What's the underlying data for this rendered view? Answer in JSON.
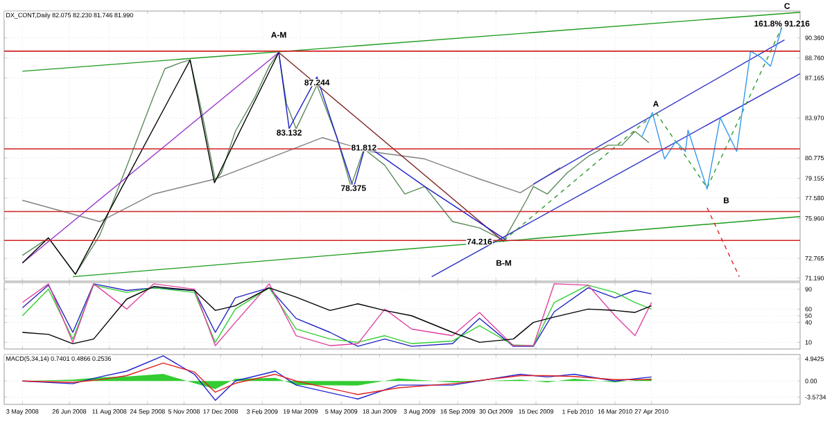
{
  "chart_data": [
    {
      "type": "line",
      "title": "DX_CONT,Daily 82.075 82.230 81.746 81.990",
      "grid": true,
      "tick_labels": "y",
      "x": [
        "2008-05-03",
        "2008-06-02",
        "2008-07-03",
        "2008-07-31",
        "2008-08-31",
        "2008-10-01",
        "2008-10-14",
        "2008-11-02",
        "2008-11-12",
        "2008-11-25",
        "2008-12-11",
        "2008-12-18",
        "2009-01-03",
        "2009-01-26",
        "2009-02-11",
        "2009-02-22",
        "2009-03-03",
        "2009-03-14",
        "2009-04-07",
        "2009-04-30",
        "2009-05-16",
        "2009-05-31",
        "2009-06-24",
        "2009-07-17",
        "2009-08-09",
        "2009-09-10",
        "2009-10-11",
        "2009-11-08",
        "2009-12-04",
        "2009-12-12",
        "2009-12-28",
        "2010-01-20",
        "2010-02-13",
        "2010-03-08",
        "2010-03-24",
        "2010-04-08",
        "2010-04-24"
      ],
      "series": [
        {
          "color": "#5a8a5a",
          "values": [
            73.0,
            74.4,
            71.5,
            74.6,
            80.1,
            85.7,
            87.9,
            88.4,
            88.6,
            84.6,
            79.0,
            79.6,
            82.9,
            85.7,
            88.1,
            89.2,
            85.1,
            83.1,
            86.6,
            82.4,
            78.5,
            81.5,
            80.2,
            77.9,
            78.5,
            75.7,
            75.2,
            74.2,
            77.4,
            78.5,
            77.9,
            79.6,
            80.9,
            81.8,
            81.8,
            82.9,
            82.0
          ]
        },
        {
          "color": "#808080",
          "x": [
            "2008-05-03",
            "2008-07-31",
            "2008-10-01",
            "2008-12-11",
            "2009-02-20",
            "2009-04-13",
            "2009-06-07",
            "2009-08-09",
            "2009-10-11",
            "2009-11-27",
            "2010-01-12"
          ],
          "values": [
            77.4,
            75.7,
            77.9,
            79.1,
            81.0,
            82.4,
            81.3,
            80.7,
            79.1,
            78.0,
            80.0
          ]
        },
        {
          "color": "#1a9a1a",
          "x": [
            "2008-05-03",
            "2010-10-15"
          ],
          "values": [
            87.7,
            92.4
          ]
        },
        {
          "color": "#1a9a1a",
          "x": [
            "2008-06-30",
            "2010-10-15"
          ],
          "values": [
            71.3,
            76.1
          ]
        },
        {
          "color": "#9932cc",
          "x": [
            "2008-05-03",
            "2009-02-22"
          ],
          "values": [
            72.4,
            89.2
          ]
        },
        {
          "color": "#000000",
          "x": [
            "2008-05-03",
            "2008-06-02",
            "2008-07-03",
            "2008-11-12",
            "2008-12-10",
            "2009-02-22"
          ],
          "values": [
            72.4,
            74.4,
            71.5,
            88.6,
            78.8,
            89.2
          ]
        },
        {
          "color": "#7b2020",
          "x": [
            "2009-02-22",
            "2009-11-08"
          ],
          "values": [
            89.2,
            74.1
          ]
        },
        {
          "color": "#1c1cc8",
          "x": [
            "2009-02-22",
            "2009-03-06",
            "2009-04-07",
            "2009-05-19",
            "2009-06-02",
            "2009-08-09",
            "2009-11-11"
          ],
          "values": [
            89.2,
            83.132,
            87.244,
            78.375,
            81.812,
            78.5,
            74.216
          ]
        },
        {
          "color": "#3030c8",
          "x": [
            "2009-08-17",
            "2010-10-15"
          ],
          "values": [
            71.3,
            87.5
          ]
        },
        {
          "color": "#3030c8",
          "x": [
            "2009-12-12",
            "2010-09-27"
          ],
          "values": [
            78.7,
            90.2
          ]
        },
        {
          "color": "#2a9a2a",
          "line_style": "dashed",
          "x": [
            "2009-11-08",
            "2010-05-02",
            "2010-06-30",
            "2010-09-24"
          ],
          "values": [
            74.2,
            84.4,
            78.4,
            91.216
          ]
        },
        {
          "color": "#3399ee",
          "x": [
            "2010-04-16",
            "2010-04-28",
            "2010-05-12",
            "2010-05-25",
            "2010-06-05",
            "2010-06-08",
            "2010-06-30",
            "2010-07-15",
            "2010-08-03",
            "2010-08-19",
            "2010-08-31",
            "2010-09-11",
            "2010-09-24"
          ],
          "values": [
            82.5,
            84.4,
            80.7,
            82.1,
            81.3,
            83.0,
            78.3,
            84.0,
            81.3,
            89.3,
            88.8,
            88.1,
            91.216
          ]
        },
        {
          "color": "#e02020",
          "line_style": "dashed",
          "x": [
            "2010-06-30",
            "2010-08-06"
          ],
          "values": [
            76.8,
            71.3
          ]
        }
      ],
      "xlim": [
        "2008-04-12",
        "2010-10-15"
      ],
      "xticks": [
        "2008-05-03",
        "2008-06-26",
        "2008-08-11",
        "2008-09-24",
        "2008-11-05",
        "2008-12-17",
        "2009-02-03",
        "2009-03-19",
        "2009-05-05",
        "2009-06-18",
        "2009-08-03",
        "2009-09-16",
        "2009-10-30",
        "2009-12-15",
        "2010-02-01",
        "2010-03-16",
        "2010-04-27"
      ],
      "ylim": [
        70.95,
        92.5
      ],
      "yticks": [
        {
          "value": 71.19,
          "label": "71.190"
        },
        72.765,
        {
          "value": 75.96,
          "label": "75.960"
        },
        {
          "value": 77.58,
          "label": "77.580"
        },
        79.155,
        80.775,
        {
          "value": 83.97,
          "label": "83.970"
        },
        87.165,
        {
          "value": 88.76,
          "label": "88.760"
        },
        {
          "value": 90.36,
          "label": "90.360"
        }
      ],
      "ref_lines": [
        {
          "axis": "y",
          "value": 89.3,
          "color": "#d02020"
        },
        {
          "axis": "y",
          "value": 81.5,
          "color": "#d02020"
        },
        {
          "axis": "y",
          "value": 76.5,
          "color": "#d02020"
        },
        {
          "axis": "y",
          "value": 74.2,
          "color": "#d02020"
        }
      ],
      "annotations": [
        {
          "text": "A-M",
          "x": "2009-02-22",
          "y": 90.6
        },
        {
          "text": "B-M",
          "x": "2009-11-08",
          "y": 72.4
        },
        {
          "text": "A",
          "x": "2010-05-02",
          "y": 85.1
        },
        {
          "text": "B",
          "x": "2010-07-22",
          "y": 77.4
        },
        {
          "text": "C",
          "x": "2010-09-30",
          "y": 92.9
        },
        {
          "text": "161.8% 91.216",
          "x": "2010-09-24",
          "y": 91.5
        },
        {
          "text": "87.244",
          "x": "2009-04-07",
          "y": 86.8
        },
        {
          "text": "83.132",
          "x": "2009-03-06",
          "y": 82.8
        },
        {
          "text": "81.812",
          "x": "2009-05-31",
          "y": 81.6
        },
        {
          "text": "78.375",
          "x": "2009-05-19",
          "y": 78.375
        },
        {
          "text": "74.216",
          "x": "2009-10-11",
          "y": 74.1
        }
      ]
    },
    {
      "type": "line",
      "grid": true,
      "tick_labels": "y",
      "x": [
        "2008-05-03",
        "2008-06-02",
        "2008-06-30",
        "2008-07-24",
        "2008-08-31",
        "2008-10-01",
        "2008-11-17",
        "2008-12-11",
        "2009-01-03",
        "2009-02-11",
        "2009-03-14",
        "2009-04-22",
        "2009-05-24",
        "2009-06-24",
        "2009-07-25",
        "2009-09-10",
        "2009-10-11",
        "2009-11-19",
        "2009-12-12",
        "2010-01-05",
        "2010-02-13",
        "2010-03-16",
        "2010-04-08",
        "2010-04-27"
      ],
      "series": [
        {
          "color": "#2020c0",
          "values": [
            62,
            96,
            25,
            98,
            88,
            92,
            88,
            25,
            77,
            92,
            46,
            25,
            4,
            15,
            4,
            8,
            46,
            4,
            4,
            56,
            92,
            77,
            88,
            83
          ]
        },
        {
          "color": "#30d030",
          "values": [
            50,
            90,
            15,
            96,
            85,
            92,
            85,
            10,
            60,
            92,
            30,
            15,
            10,
            20,
            8,
            12,
            35,
            6,
            5,
            70,
            96,
            85,
            70,
            60
          ]
        },
        {
          "color": "#e040a0",
          "values": [
            70,
            98,
            10,
            98,
            60,
            98,
            90,
            5,
            40,
            98,
            20,
            5,
            8,
            60,
            30,
            20,
            55,
            5,
            5,
            98,
            96,
            50,
            20,
            70
          ]
        },
        {
          "color": "#000000",
          "values": [
            25,
            22,
            8,
            15,
            75,
            94,
            88,
            58,
            65,
            92,
            78,
            58,
            68,
            58,
            50,
            25,
            10,
            15,
            40,
            48,
            60,
            58,
            55,
            65
          ]
        }
      ],
      "xlim": [
        "2008-04-12",
        "2010-10-15"
      ],
      "xticks": [
        "2008-05-03",
        "2008-06-26",
        "2008-08-11",
        "2008-09-24",
        "2008-11-05",
        "2008-12-17",
        "2009-02-03",
        "2009-03-19",
        "2009-05-05",
        "2009-06-18",
        "2009-08-03",
        "2009-09-16",
        "2009-10-30",
        "2009-12-15",
        "2010-02-01",
        "2010-03-16",
        "2010-04-27"
      ],
      "ylim": [
        0,
        100
      ],
      "yticks": [
        10,
        40,
        50,
        60,
        90
      ]
    },
    {
      "type": "line",
      "title": "MACD(5,34,14) 0.7401 0.4866 0.2536",
      "grid": true,
      "x": [
        "2008-05-03",
        "2008-06-30",
        "2008-07-31",
        "2008-08-31",
        "2008-10-12",
        "2008-11-17",
        "2008-12-11",
        "2009-01-03",
        "2009-02-18",
        "2009-03-14",
        "2009-05-24",
        "2009-07-10",
        "2009-09-10",
        "2009-11-27",
        "2009-12-28",
        "2010-01-28",
        "2010-03-16",
        "2010-04-27"
      ],
      "series": [
        {
          "type": "area",
          "color": "#33cc33",
          "values": [
            0,
            0.3,
            0.8,
            1.0,
            1.6,
            -0.5,
            -1.8,
            0.5,
            0.7,
            -0.9,
            -1.0,
            0.6,
            -0.3,
            0.3,
            -0.3,
            0.5,
            -0.3,
            0.6
          ]
        },
        {
          "color": "#2020d0",
          "values": [
            0,
            -0.6,
            0.9,
            2.2,
            5.6,
            1.5,
            -4.3,
            0,
            2.2,
            -0.9,
            -4.0,
            -0.9,
            -0.9,
            1.5,
            0.9,
            1.5,
            0,
            0.9
          ]
        },
        {
          "color": "#e02020",
          "values": [
            0,
            -0.3,
            0.3,
            1.2,
            4.0,
            2.0,
            -2.5,
            -0.5,
            1.5,
            0,
            -3.0,
            -1.5,
            -0.6,
            1.2,
            1.2,
            1.0,
            0.3,
            0.3
          ]
        }
      ],
      "xlim": [
        "2008-04-12",
        "2010-10-15"
      ],
      "xticks": [
        {
          "value": "2008-05-03",
          "label": "3 May 2008"
        },
        {
          "value": "2008-06-26",
          "label": "26 Jun 2008"
        },
        {
          "value": "2008-08-11",
          "label": "11 Aug 2008"
        },
        {
          "value": "2008-09-24",
          "label": "24 Sep 2008"
        },
        {
          "value": "2008-11-05",
          "label": "5 Nov 2008"
        },
        {
          "value": "2008-12-17",
          "label": "17 Dec 2008"
        },
        {
          "value": "2009-02-03",
          "label": "3 Feb 2009"
        },
        {
          "value": "2009-03-19",
          "label": "19 Mar 2009"
        },
        {
          "value": "2009-05-05",
          "label": "5 May 2009"
        },
        {
          "value": "2009-06-18",
          "label": "18 Jun 2009"
        },
        {
          "value": "2009-08-03",
          "label": "3 Aug 2009"
        },
        {
          "value": "2009-09-16",
          "label": "16 Sep 2009"
        },
        {
          "value": "2009-10-30",
          "label": "30 Oct 2009"
        },
        {
          "value": "2009-12-15",
          "label": "15 Dec 2009"
        },
        {
          "value": "2010-02-01",
          "label": "1 Feb 2010"
        },
        {
          "value": "2010-03-16",
          "label": "16 Mar 2010"
        },
        {
          "value": "2010-04-27",
          "label": "27 Apr 2010"
        }
      ],
      "ylim": [
        -5.2,
        5.9
      ],
      "yticks": [
        {
          "value": -3.5734,
          "label": "-3.5734"
        },
        {
          "value": 0,
          "label": "0.00"
        },
        4.9425
      ]
    }
  ]
}
